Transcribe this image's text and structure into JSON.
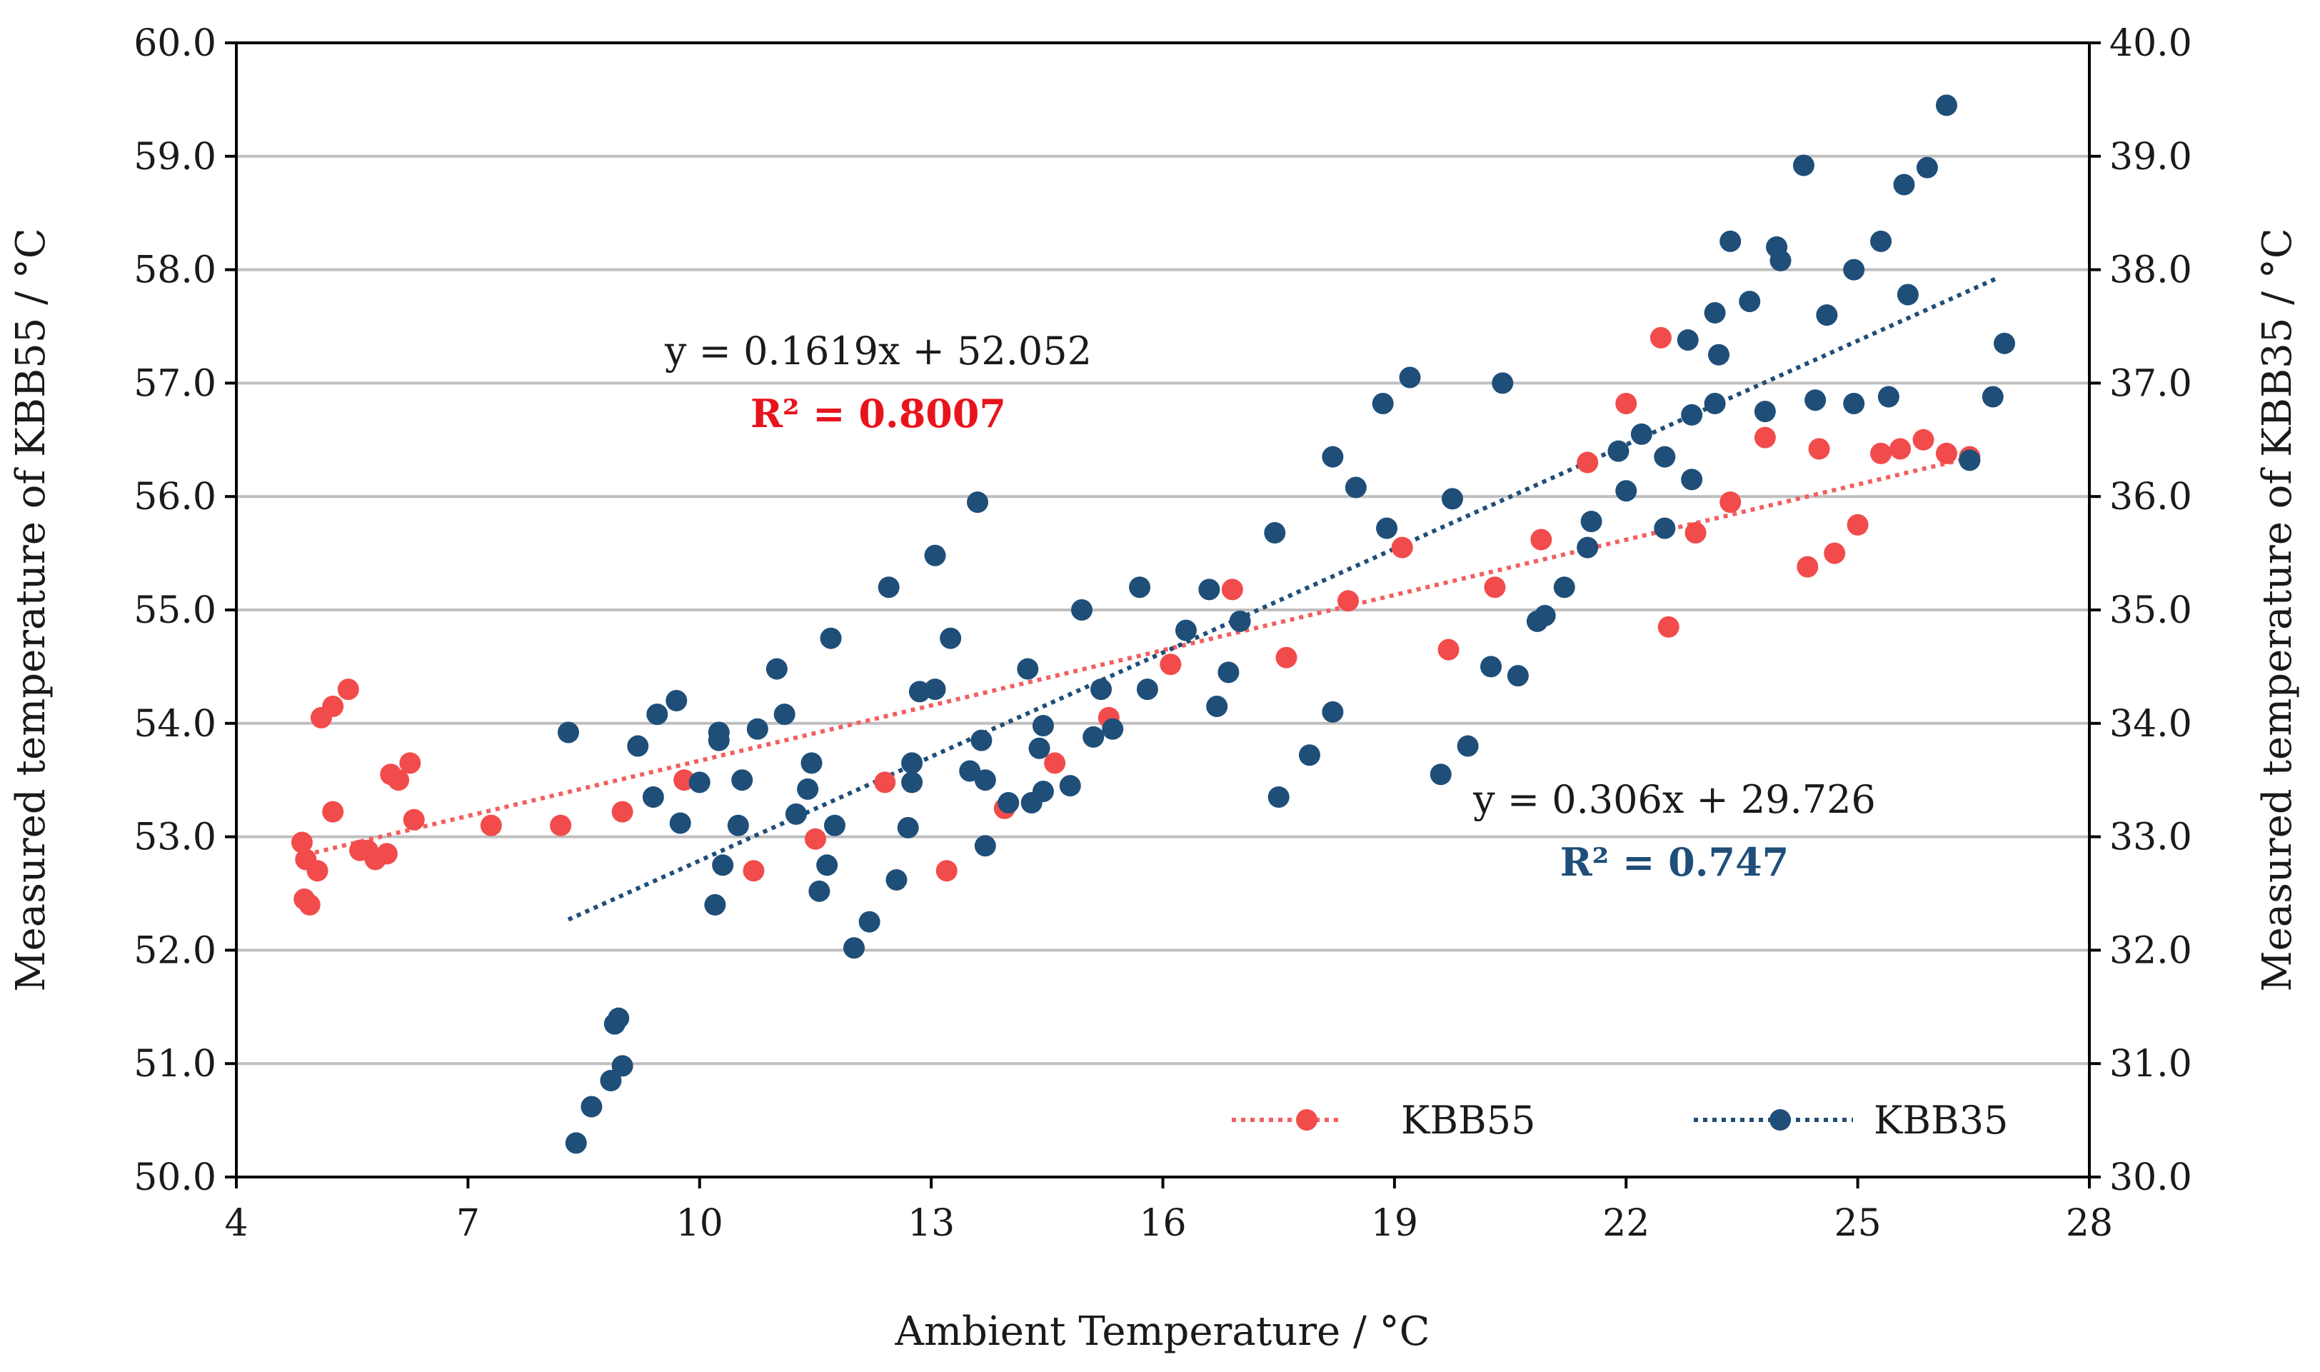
{
  "chart_data": {
    "type": "scatter",
    "xlabel": "Ambient Temperature / °C",
    "ylabel_left": "Measured temperature of KBB55 / °C",
    "ylabel_right": "Measured temperature of KBB35 / °C",
    "xlim": [
      4,
      28
    ],
    "ylim_left": [
      50,
      60
    ],
    "ylim_right": [
      30,
      40
    ],
    "x_ticks": [
      "4",
      "7",
      "10",
      "13",
      "16",
      "19",
      "22",
      "25",
      "28"
    ],
    "y_left_ticks": [
      "50.0",
      "51.0",
      "52.0",
      "53.0",
      "54.0",
      "55.0",
      "56.0",
      "57.0",
      "58.0",
      "59.0",
      "60.0"
    ],
    "y_right_ticks": [
      "30.0",
      "31.0",
      "32.0",
      "33.0",
      "34.0",
      "35.0",
      "36.0",
      "37.0",
      "38.0",
      "39.0",
      "40.0"
    ],
    "grid": "horizontal",
    "legend_position": "bottom-right",
    "series": [
      {
        "name": "KBB55",
        "axis": "left",
        "color": "#f24b4b",
        "trend_color": "#f26060",
        "equation": "y = 0.1619x + 52.052",
        "r2": "R² = 0.8007",
        "trend_x": [
          4.9,
          26.5
        ],
        "points": [
          [
            4.85,
            52.95
          ],
          [
            4.9,
            52.8
          ],
          [
            4.88,
            52.45
          ],
          [
            4.95,
            52.4
          ],
          [
            5.05,
            52.7
          ],
          [
            5.1,
            54.05
          ],
          [
            5.25,
            54.15
          ],
          [
            5.45,
            54.3
          ],
          [
            5.25,
            53.22
          ],
          [
            5.6,
            52.88
          ],
          [
            5.7,
            52.88
          ],
          [
            5.8,
            52.8
          ],
          [
            5.95,
            52.85
          ],
          [
            6.0,
            53.55
          ],
          [
            6.1,
            53.5
          ],
          [
            6.25,
            53.65
          ],
          [
            6.3,
            53.15
          ],
          [
            7.3,
            53.1
          ],
          [
            8.2,
            53.1
          ],
          [
            9.0,
            53.22
          ],
          [
            9.8,
            53.5
          ],
          [
            10.7,
            52.7
          ],
          [
            11.5,
            52.98
          ],
          [
            12.4,
            53.48
          ],
          [
            13.2,
            52.7
          ],
          [
            13.95,
            53.25
          ],
          [
            14.6,
            53.65
          ],
          [
            15.3,
            54.05
          ],
          [
            16.1,
            54.52
          ],
          [
            16.9,
            55.18
          ],
          [
            17.6,
            54.58
          ],
          [
            18.4,
            55.08
          ],
          [
            19.1,
            55.55
          ],
          [
            19.7,
            54.65
          ],
          [
            20.3,
            55.2
          ],
          [
            20.9,
            55.62
          ],
          [
            21.5,
            56.3
          ],
          [
            22.0,
            56.82
          ],
          [
            22.45,
            57.4
          ],
          [
            22.55,
            54.85
          ],
          [
            22.9,
            55.68
          ],
          [
            23.35,
            55.95
          ],
          [
            23.8,
            56.52
          ],
          [
            24.35,
            55.38
          ],
          [
            24.5,
            56.42
          ],
          [
            24.7,
            55.5
          ],
          [
            25.0,
            55.75
          ],
          [
            25.3,
            56.38
          ],
          [
            25.55,
            56.42
          ],
          [
            25.85,
            56.5
          ],
          [
            26.15,
            56.38
          ],
          [
            26.45,
            56.35
          ]
        ]
      },
      {
        "name": "KBB35",
        "axis": "right",
        "color": "#1f4e79",
        "trend_color": "#1f4e79",
        "equation": "y = 0.306x + 29.726",
        "r2": "R² = 0.747",
        "trend_x": [
          8.3,
          26.8
        ],
        "points": [
          [
            8.3,
            33.92
          ],
          [
            8.4,
            30.3
          ],
          [
            8.6,
            30.62
          ],
          [
            8.85,
            30.85
          ],
          [
            8.9,
            31.35
          ],
          [
            8.95,
            31.4
          ],
          [
            9.0,
            30.98
          ],
          [
            9.2,
            33.8
          ],
          [
            9.4,
            33.35
          ],
          [
            9.45,
            34.08
          ],
          [
            9.7,
            34.2
          ],
          [
            9.75,
            33.12
          ],
          [
            10.0,
            33.48
          ],
          [
            10.2,
            32.4
          ],
          [
            10.25,
            33.92
          ],
          [
            10.25,
            33.85
          ],
          [
            10.3,
            32.75
          ],
          [
            10.5,
            33.1
          ],
          [
            10.55,
            33.5
          ],
          [
            10.75,
            33.95
          ],
          [
            11.0,
            34.48
          ],
          [
            11.1,
            34.08
          ],
          [
            11.25,
            33.2
          ],
          [
            11.4,
            33.42
          ],
          [
            11.45,
            33.65
          ],
          [
            11.55,
            32.52
          ],
          [
            11.65,
            32.75
          ],
          [
            11.7,
            34.75
          ],
          [
            11.75,
            33.1
          ],
          [
            12.0,
            32.02
          ],
          [
            12.2,
            32.25
          ],
          [
            12.45,
            35.2
          ],
          [
            12.55,
            32.62
          ],
          [
            12.7,
            33.08
          ],
          [
            12.75,
            33.48
          ],
          [
            12.75,
            33.65
          ],
          [
            12.85,
            34.28
          ],
          [
            13.05,
            34.3
          ],
          [
            13.05,
            35.48
          ],
          [
            13.25,
            34.75
          ],
          [
            13.5,
            33.58
          ],
          [
            13.6,
            35.95
          ],
          [
            13.65,
            33.85
          ],
          [
            13.7,
            33.5
          ],
          [
            13.7,
            32.92
          ],
          [
            14.0,
            33.3
          ],
          [
            14.25,
            34.48
          ],
          [
            14.3,
            33.3
          ],
          [
            14.4,
            33.78
          ],
          [
            14.45,
            33.4
          ],
          [
            14.45,
            33.98
          ],
          [
            14.8,
            33.45
          ],
          [
            14.95,
            35.0
          ],
          [
            15.1,
            33.88
          ],
          [
            15.2,
            34.3
          ],
          [
            15.35,
            33.95
          ],
          [
            15.7,
            35.2
          ],
          [
            15.8,
            34.3
          ],
          [
            16.3,
            34.82
          ],
          [
            16.6,
            35.18
          ],
          [
            16.7,
            34.15
          ],
          [
            16.85,
            34.45
          ],
          [
            17.0,
            34.9
          ],
          [
            17.45,
            35.68
          ],
          [
            17.5,
            33.35
          ],
          [
            17.9,
            33.72
          ],
          [
            18.2,
            34.1
          ],
          [
            18.2,
            36.35
          ],
          [
            18.5,
            36.08
          ],
          [
            18.85,
            36.82
          ],
          [
            18.9,
            35.72
          ],
          [
            19.2,
            37.05
          ],
          [
            19.6,
            33.55
          ],
          [
            19.75,
            35.98
          ],
          [
            19.95,
            33.8
          ],
          [
            20.25,
            34.5
          ],
          [
            20.4,
            37.0
          ],
          [
            20.6,
            34.42
          ],
          [
            20.85,
            34.9
          ],
          [
            20.95,
            34.95
          ],
          [
            21.2,
            35.2
          ],
          [
            21.5,
            35.55
          ],
          [
            21.55,
            35.78
          ],
          [
            21.9,
            36.4
          ],
          [
            22.0,
            36.05
          ],
          [
            22.2,
            36.55
          ],
          [
            22.5,
            36.35
          ],
          [
            22.5,
            35.72
          ],
          [
            22.8,
            37.38
          ],
          [
            22.85,
            36.72
          ],
          [
            22.85,
            36.15
          ],
          [
            23.15,
            37.62
          ],
          [
            23.15,
            36.82
          ],
          [
            23.2,
            37.25
          ],
          [
            23.35,
            38.25
          ],
          [
            23.6,
            37.72
          ],
          [
            23.8,
            36.75
          ],
          [
            23.95,
            38.2
          ],
          [
            24.0,
            38.08
          ],
          [
            24.3,
            38.92
          ],
          [
            24.45,
            36.85
          ],
          [
            24.6,
            37.6
          ],
          [
            24.95,
            36.82
          ],
          [
            24.95,
            38.0
          ],
          [
            25.3,
            38.25
          ],
          [
            25.4,
            36.88
          ],
          [
            25.65,
            37.78
          ],
          [
            25.6,
            38.75
          ],
          [
            25.9,
            38.9
          ],
          [
            26.15,
            39.45
          ],
          [
            26.45,
            36.32
          ],
          [
            26.75,
            36.88
          ],
          [
            26.9,
            37.35
          ]
        ]
      }
    ]
  }
}
